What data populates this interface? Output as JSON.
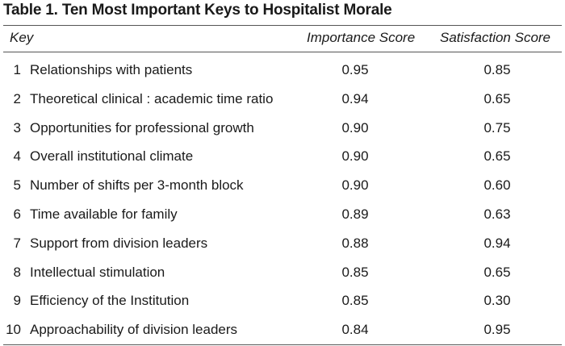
{
  "table": {
    "title": "Table 1. Ten Most Important Keys to Hospitalist Morale",
    "headers": {
      "key": "Key",
      "importance": "Importance Score",
      "satisfaction": "Satisfaction Score"
    },
    "rows": [
      {
        "num": "1",
        "key": "Relationships with patients",
        "importance": "0.95",
        "satisfaction": "0.85"
      },
      {
        "num": "2",
        "key": "Theoretical clinical : academic time ratio",
        "importance": "0.94",
        "satisfaction": "0.65"
      },
      {
        "num": "3",
        "key": "Opportunities for professional growth",
        "importance": "0.90",
        "satisfaction": "0.75"
      },
      {
        "num": "4",
        "key": "Overall institutional climate",
        "importance": "0.90",
        "satisfaction": "0.65"
      },
      {
        "num": "5",
        "key": "Number of shifts per 3-month block",
        "importance": "0.90",
        "satisfaction": "0.60"
      },
      {
        "num": "6",
        "key": "Time available for family",
        "importance": "0.89",
        "satisfaction": "0.63"
      },
      {
        "num": "7",
        "key": "Support from division leaders",
        "importance": "0.88",
        "satisfaction": "0.94"
      },
      {
        "num": "8",
        "key": "Intellectual stimulation",
        "importance": "0.85",
        "satisfaction": "0.65"
      },
      {
        "num": "9",
        "key": "Efficiency of the Institution",
        "importance": "0.85",
        "satisfaction": "0.30"
      },
      {
        "num": "10",
        "key": "Approachability of division leaders",
        "importance": "0.84",
        "satisfaction": "0.95"
      }
    ]
  }
}
